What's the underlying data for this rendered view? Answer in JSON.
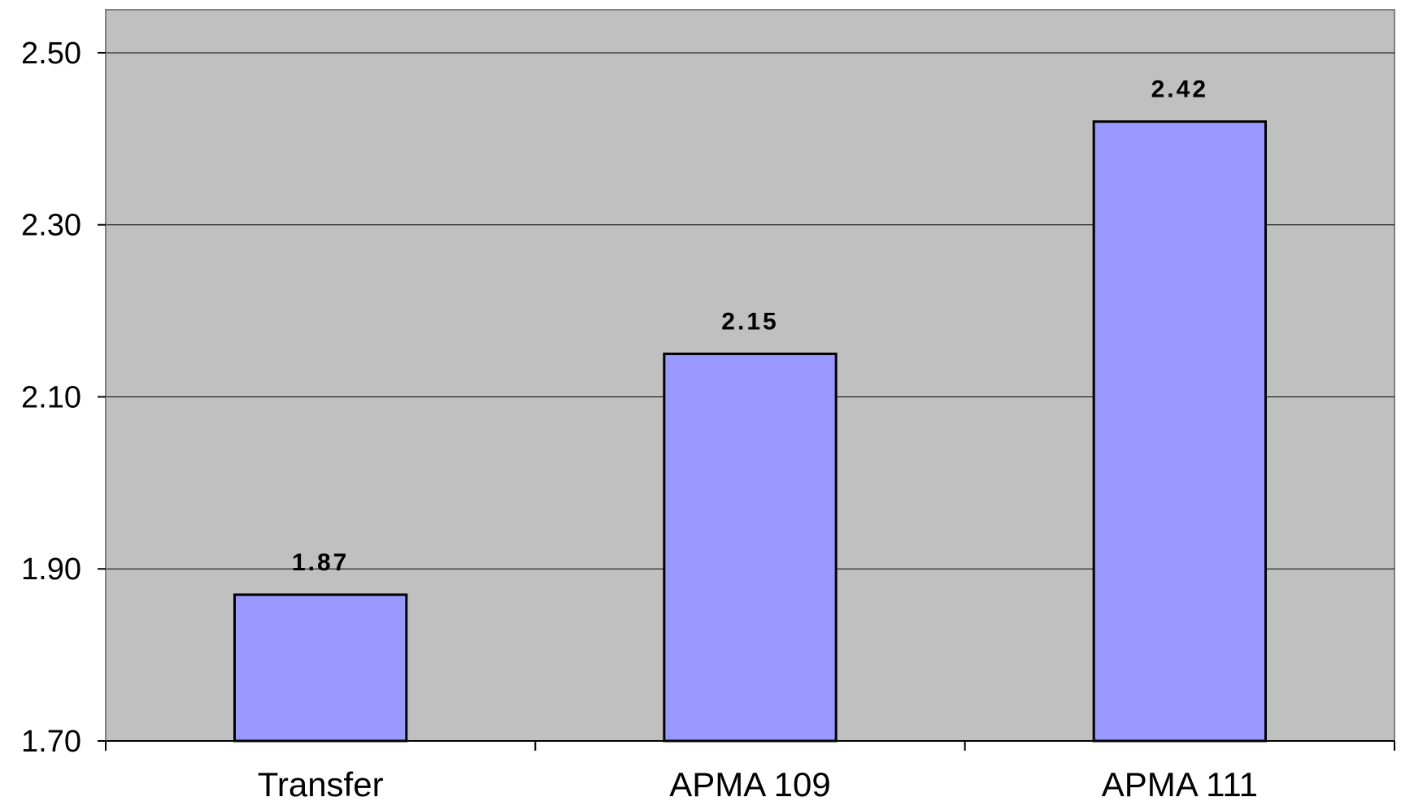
{
  "chart_data": {
    "type": "bar",
    "categories": [
      "Transfer",
      "APMA 109",
      "APMA 111"
    ],
    "values": [
      1.87,
      2.15,
      2.42
    ],
    "data_labels": [
      "1.87",
      "2.15",
      "2.42"
    ],
    "title": "",
    "xlabel": "",
    "ylabel": "",
    "ylim": [
      1.7,
      2.55
    ],
    "yticks": [
      1.7,
      1.9,
      2.1,
      2.3,
      2.5
    ],
    "ytick_labels": [
      "1.70",
      "1.90",
      "2.10",
      "2.30",
      "2.50"
    ],
    "grid": true,
    "legend": "none",
    "colors": {
      "bar_fill": "#9999ff",
      "bar_stroke": "#000000",
      "plot_background": "#c0c0c0",
      "gridline": "#000000"
    }
  }
}
